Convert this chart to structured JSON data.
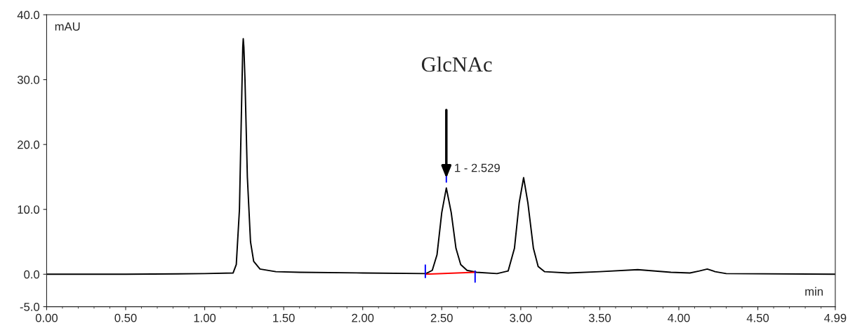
{
  "chart_data": {
    "type": "line",
    "xlabel": "min",
    "ylabel": "mAU",
    "xlim": [
      0,
      4.99
    ],
    "ylim": [
      -5,
      40
    ],
    "xticks": [
      {
        "value": 0,
        "label": "0.00"
      },
      {
        "value": 0.5,
        "label": "0.50"
      },
      {
        "value": 1,
        "label": "1.00"
      },
      {
        "value": 1.5,
        "label": "1.50"
      },
      {
        "value": 2,
        "label": "2.00"
      },
      {
        "value": 2.5,
        "label": "2.50"
      },
      {
        "value": 3,
        "label": "3.00"
      },
      {
        "value": 3.5,
        "label": "3.50"
      },
      {
        "value": 4,
        "label": "4.00"
      },
      {
        "value": 4.5,
        "label": "4.50"
      },
      4.99
    ],
    "yticks": [
      {
        "value": -5,
        "label": "-5.0"
      },
      {
        "value": 0,
        "label": "0.0"
      },
      {
        "value": 10,
        "label": "10.0"
      },
      {
        "value": 20,
        "label": "20.0"
      },
      {
        "value": 30,
        "label": "30.0"
      },
      {
        "value": 40,
        "label": "40.0"
      }
    ],
    "grid": false,
    "legend": false,
    "marker": "none",
    "line_style": "solid",
    "series": [
      {
        "color": "#000000",
        "x": [
          0,
          0.5,
          1.0,
          1.18,
          1.2,
          1.22,
          1.235,
          1.241,
          1.244,
          1.248,
          1.255,
          1.27,
          1.29,
          1.31,
          1.35,
          1.45,
          1.6,
          2.0,
          2.4,
          2.44,
          2.47,
          2.5,
          2.529,
          2.56,
          2.59,
          2.62,
          2.66,
          2.72,
          2.85,
          2.92,
          2.96,
          2.99,
          3.018,
          3.045,
          3.08,
          3.11,
          3.15,
          3.3,
          3.5,
          3.74,
          3.95,
          4.07,
          4.13,
          4.18,
          4.23,
          4.3,
          4.99
        ],
        "values": [
          0.0,
          0.0,
          0.1,
          0.2,
          1.5,
          10,
          28,
          35,
          36.3,
          35,
          30,
          15,
          5,
          2,
          0.8,
          0.4,
          0.3,
          0.2,
          0.1,
          0.6,
          3,
          9.5,
          13.3,
          9.5,
          4,
          1.5,
          0.6,
          0.3,
          0.1,
          0.5,
          4,
          11,
          14.9,
          11,
          4,
          1.2,
          0.4,
          0.2,
          0.4,
          0.7,
          0.3,
          0.2,
          0.5,
          0.8,
          0.4,
          0.1,
          0.0
        ]
      },
      {
        "color": "#ff0000",
        "x": [
          2.396,
          2.711
        ],
        "values": [
          0.0,
          0.3
        ]
      },
      {
        "color": "#0000ff",
        "x": [
          2.396,
          2.396,
          2.5,
          2.529,
          2.529,
          2.6,
          2.711,
          2.711
        ],
        "values": [
          -0.5,
          1.4,
          null,
          14.2,
          15.2,
          null,
          -1.2,
          0.5
        ]
      }
    ],
    "annotations": [
      "GlcNAc",
      {
        "text": "1 - 2.529",
        "x": 2.529,
        "y": 13.3
      }
    ]
  }
}
